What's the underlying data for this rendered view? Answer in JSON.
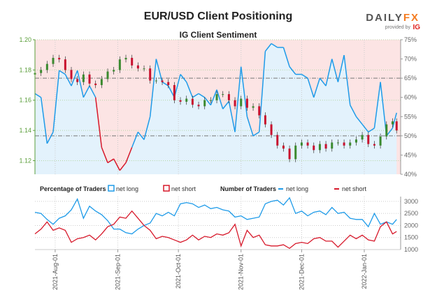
{
  "header": {
    "title": "EUR/USD Client Positioning",
    "logo_text": "DAILYFX",
    "logo_sub": "provided by",
    "logo_brand": "IG"
  },
  "chart_data": [
    {
      "type": "candlestick+area",
      "title": "IG Client Sentiment",
      "y_left": {
        "range": [
          1.111,
          1.2
        ],
        "ticks": [
          "1.20",
          "1.18",
          "1.16",
          "1.14",
          "1.12"
        ],
        "tick_values": [
          1.2,
          1.18,
          1.16,
          1.14,
          1.12
        ],
        "color": "#5a9e3a"
      },
      "y_right": {
        "range": [
          40,
          75
        ],
        "ticks": [
          "75%",
          "70%",
          "65%",
          "60%",
          "55%",
          "50%",
          "45%",
          "40%"
        ],
        "tick_values": [
          75,
          70,
          65,
          60,
          55,
          50,
          45,
          40
        ]
      },
      "reference_lines_pct": [
        65,
        50
      ],
      "x": [
        "2021-07-22",
        "2021-07-25",
        "2021-07-28",
        "2021-07-31",
        "2021-08-03",
        "2021-08-06",
        "2021-08-09",
        "2021-08-12",
        "2021-08-15",
        "2021-08-18",
        "2021-08-21",
        "2021-08-24",
        "2021-08-27",
        "2021-08-30",
        "2021-09-02",
        "2021-09-05",
        "2021-09-08",
        "2021-09-11",
        "2021-09-14",
        "2021-09-17",
        "2021-09-20",
        "2021-09-23",
        "2021-09-26",
        "2021-09-29",
        "2021-10-02",
        "2021-10-05",
        "2021-10-08",
        "2021-10-11",
        "2021-10-14",
        "2021-10-17",
        "2021-10-20",
        "2021-10-23",
        "2021-10-26",
        "2021-10-29",
        "2021-11-01",
        "2021-11-04",
        "2021-11-07",
        "2021-11-10",
        "2021-11-13",
        "2021-11-16",
        "2021-11-19",
        "2021-11-22",
        "2021-11-25",
        "2021-11-28",
        "2021-12-01",
        "2021-12-04",
        "2021-12-07",
        "2021-12-10",
        "2021-12-13",
        "2021-12-16",
        "2021-12-19",
        "2021-12-22",
        "2021-12-25",
        "2021-12-28",
        "2021-12-31",
        "2022-01-03",
        "2022-01-06",
        "2022-01-09",
        "2022-01-12",
        "2022-01-15",
        "2022-01-17"
      ],
      "price_close": [
        1.178,
        1.18,
        1.184,
        1.188,
        1.187,
        1.18,
        1.174,
        1.172,
        1.177,
        1.171,
        1.17,
        1.174,
        1.179,
        1.18,
        1.187,
        1.188,
        1.183,
        1.181,
        1.181,
        1.173,
        1.173,
        1.172,
        1.17,
        1.16,
        1.159,
        1.161,
        1.157,
        1.156,
        1.16,
        1.16,
        1.164,
        1.164,
        1.16,
        1.156,
        1.161,
        1.155,
        1.156,
        1.15,
        1.144,
        1.137,
        1.13,
        1.128,
        1.121,
        1.13,
        1.132,
        1.13,
        1.127,
        1.131,
        1.128,
        1.132,
        1.132,
        1.13,
        1.132,
        1.134,
        1.137,
        1.131,
        1.13,
        1.136,
        1.144,
        1.146,
        1.14
      ],
      "net_long_pct": [
        61,
        60,
        48,
        51,
        67,
        66,
        63,
        67,
        60,
        63,
        60,
        47,
        43,
        44,
        41,
        43,
        47,
        51,
        49,
        55,
        70,
        64,
        63,
        60,
        66,
        64,
        60,
        61,
        60,
        58,
        62,
        57,
        59,
        51,
        68,
        55,
        50,
        51,
        72,
        74,
        73,
        73,
        68,
        66,
        66,
        65,
        60,
        65,
        63,
        70,
        64,
        71,
        58,
        55,
        53,
        51,
        52,
        64,
        50,
        52,
        56
      ],
      "colors": {
        "net_long": "#1e9be9",
        "net_short": "#d7182a",
        "bull": "#3a8a2e",
        "bear": "#c8102e",
        "bg": "#fce4e4",
        "fill": "#e3f2fc"
      }
    },
    {
      "type": "line",
      "legend": {
        "pct_title": "Percentage of Traders",
        "pct_long": "net long",
        "pct_short": "net short",
        "num_title": "Number of Traders",
        "num_long": "net long",
        "num_short": "net short"
      },
      "y_right": {
        "range": [
          1000,
          3200
        ],
        "ticks": [
          "3000",
          "2500",
          "2000",
          "1500",
          "1000"
        ],
        "tick_values": [
          3000,
          2500,
          2000,
          1500,
          1000
        ]
      },
      "x_ticks": [
        "2021-Aug-01",
        "2021-Sep-01",
        "2021-Oct-01",
        "2021-Nov-01",
        "2021-Dec-01",
        "2022-Jan-01"
      ],
      "x_tick_dates": [
        "2021-08-01",
        "2021-09-01",
        "2021-10-01",
        "2021-11-01",
        "2021-12-01",
        "2022-01-01"
      ],
      "series": [
        {
          "name": "net long",
          "values": [
            2550,
            2500,
            2250,
            2050,
            2300,
            2400,
            2650,
            3100,
            2300,
            2800,
            2600,
            2450,
            2200,
            1850,
            1850,
            1700,
            1650,
            1850,
            2000,
            2100,
            2500,
            2400,
            2550,
            2400,
            2900,
            2950,
            2900,
            2750,
            2850,
            2700,
            2750,
            2650,
            2600,
            2350,
            2400,
            2250,
            2300,
            2350,
            2900,
            3000,
            3050,
            2850,
            3150,
            2500,
            2600,
            2400,
            2550,
            2600,
            2450,
            2750,
            2500,
            2550,
            2300,
            2250,
            2250,
            1950,
            2500,
            2050,
            2150,
            2050,
            2250
          ]
        },
        {
          "name": "net short",
          "values": [
            1650,
            1850,
            2150,
            1800,
            1900,
            1800,
            1300,
            1450,
            1500,
            1600,
            1400,
            1650,
            1950,
            2050,
            2350,
            2300,
            2600,
            2300,
            2000,
            1800,
            1450,
            1550,
            1500,
            1400,
            1300,
            1400,
            1600,
            1400,
            1550,
            1500,
            1650,
            1600,
            1700,
            2050,
            1150,
            1800,
            1500,
            1600,
            1200,
            1150,
            1150,
            1200,
            1050,
            1250,
            1300,
            1250,
            1450,
            1500,
            1350,
            1350,
            1100,
            1350,
            1600,
            1450,
            1600,
            1400,
            1350,
            1950,
            2150,
            1650,
            1750
          ]
        }
      ]
    }
  ]
}
